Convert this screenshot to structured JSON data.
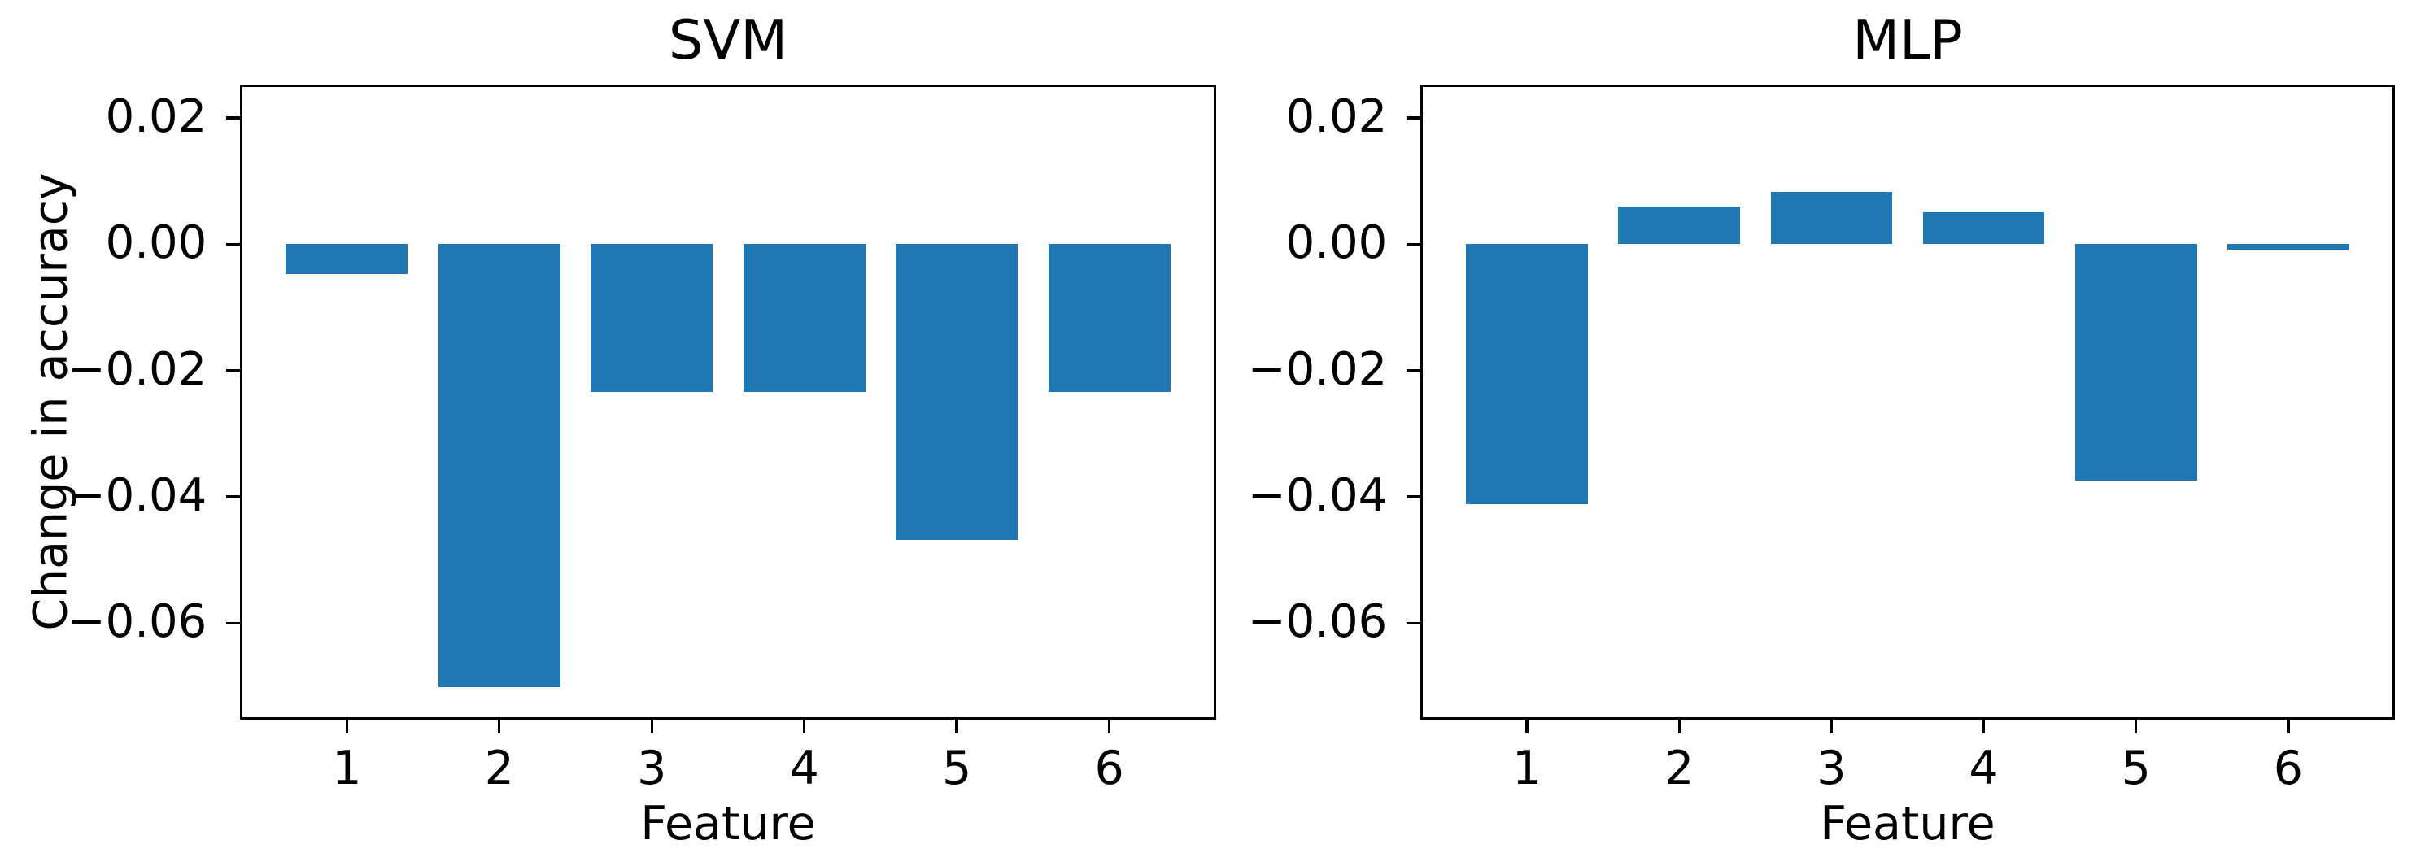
{
  "figure": {
    "background": "#ffffff",
    "bar_color": "#1f77b4",
    "axis_color": "#000000",
    "text_color": "#000000"
  },
  "chart_data": [
    {
      "type": "bar",
      "title": "SVM",
      "xlabel": "Feature",
      "ylabel": "Change in accuracy",
      "categories": [
        "1",
        "2",
        "3",
        "4",
        "5",
        "6"
      ],
      "values": [
        -0.0047,
        -0.0701,
        -0.0234,
        -0.0234,
        -0.0468,
        -0.0234
      ],
      "xlim": [
        0.31,
        6.69
      ],
      "ylim": [
        -0.075,
        0.025
      ],
      "yticks": [
        0.02,
        0.0,
        -0.02,
        -0.04,
        -0.06
      ],
      "ytick_labels": [
        "0.02",
        "0.00",
        "−0.02",
        "−0.04",
        "−0.06"
      ],
      "bar_width": 0.8,
      "grid": false,
      "legend": null
    },
    {
      "type": "bar",
      "title": "MLP",
      "xlabel": "Feature",
      "ylabel": "",
      "categories": [
        "1",
        "2",
        "3",
        "4",
        "5",
        "6"
      ],
      "values": [
        -0.0412,
        0.0059,
        0.0083,
        0.005,
        -0.0374,
        -0.0009
      ],
      "xlim": [
        0.31,
        6.69
      ],
      "ylim": [
        -0.075,
        0.025
      ],
      "yticks": [
        0.02,
        0.0,
        -0.02,
        -0.04,
        -0.06
      ],
      "ytick_labels": [
        "0.02",
        "0.00",
        "−0.02",
        "−0.04",
        "−0.06"
      ],
      "bar_width": 0.8,
      "grid": false,
      "legend": null
    }
  ]
}
